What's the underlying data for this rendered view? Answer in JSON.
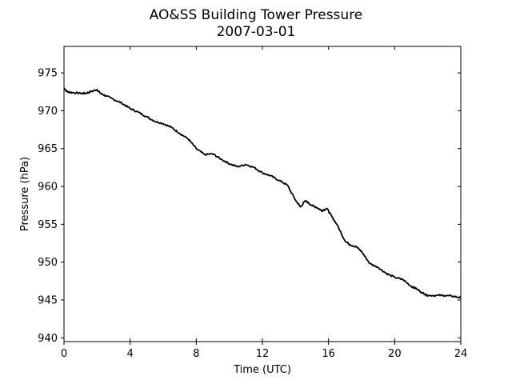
{
  "chart_data": {
    "type": "line",
    "title": "AO&SS Building Tower Pressure",
    "subtitle": "2007-03-01",
    "xlabel": "Time (UTC)",
    "ylabel": "Pressure (hPa)",
    "xlim": [
      0,
      24
    ],
    "ylim": [
      939.5,
      978.5
    ],
    "xticks": [
      0,
      4,
      8,
      12,
      16,
      20,
      24
    ],
    "yticks": [
      940,
      945,
      950,
      955,
      960,
      965,
      970,
      975
    ],
    "grid": false,
    "line_color": "#000000",
    "series": [
      {
        "x": [
          0,
          0.2,
          0.5,
          1,
          1.3,
          1.6,
          2,
          2.2,
          2.5,
          3,
          3.5,
          4,
          4.5,
          5,
          5.5,
          6,
          6.5,
          7,
          7.5,
          8,
          8.5,
          9,
          9.5,
          10,
          10.5,
          11,
          11.5,
          12,
          12.5,
          13,
          13.5,
          14,
          14.3,
          14.6,
          15,
          15.3,
          15.6,
          15.9,
          16.2,
          16.5,
          17,
          17.3,
          17.7,
          18,
          18.5,
          19,
          19.5,
          20,
          20.5,
          21,
          21.3,
          21.7,
          22,
          22.5,
          23,
          23.5,
          24
        ],
        "y": [
          973.0,
          972.5,
          972.4,
          972.3,
          972.3,
          972.5,
          972.8,
          972.3,
          972.0,
          971.5,
          971.0,
          970.3,
          969.8,
          969.2,
          968.6,
          968.3,
          967.8,
          967.0,
          966.3,
          965.0,
          964.2,
          964.3,
          963.6,
          963.0,
          962.6,
          962.9,
          962.5,
          961.8,
          961.4,
          960.8,
          960.2,
          958.2,
          957.3,
          958.1,
          957.5,
          957.2,
          956.8,
          957.1,
          956.0,
          955.0,
          952.8,
          952.3,
          952.0,
          951.4,
          949.8,
          949.3,
          948.5,
          948.0,
          947.7,
          946.8,
          946.5,
          945.9,
          945.6,
          945.6,
          945.6,
          945.5,
          945.3
        ]
      }
    ]
  }
}
